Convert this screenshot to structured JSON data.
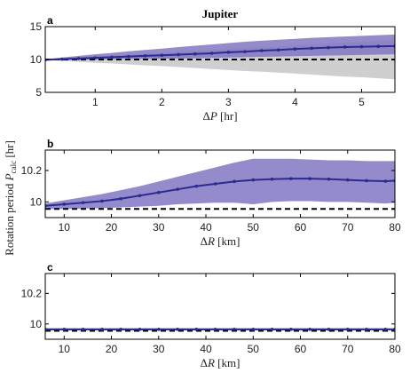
{
  "figure_title": "Jupiter",
  "shared_ylabel": "Rotation period P_calc [hr]",
  "colors": {
    "series": "#2b2b8f",
    "band": "#8177c4",
    "ref_band": "#cfcfcf",
    "reference": "#000000"
  },
  "chart_data": [
    {
      "panel": "a",
      "type": "line",
      "xlabel": "ΔP [hr]",
      "xlim": [
        0.25,
        5.5
      ],
      "ylim": [
        5,
        15
      ],
      "xticks": [
        1,
        2,
        3,
        4,
        5
      ],
      "yticks": [
        5,
        10,
        15
      ],
      "x": [
        0.25,
        0.5,
        0.75,
        1.0,
        1.25,
        1.5,
        1.75,
        2.0,
        2.25,
        2.5,
        2.75,
        3.0,
        3.25,
        3.5,
        3.75,
        4.0,
        4.25,
        4.5,
        4.75,
        5.0,
        5.25,
        5.5
      ],
      "series": [
        {
          "values": [
            9.95,
            10.05,
            10.15,
            10.25,
            10.35,
            10.45,
            10.55,
            10.65,
            10.75,
            10.85,
            10.95,
            11.1,
            11.2,
            11.35,
            11.45,
            11.6,
            11.7,
            11.8,
            11.9,
            11.95,
            12.0,
            12.05
          ]
        }
      ],
      "band_upper": [
        10.05,
        10.3,
        10.55,
        10.8,
        11.0,
        11.25,
        11.45,
        11.65,
        11.9,
        12.1,
        12.3,
        12.5,
        12.7,
        12.85,
        13.0,
        13.15,
        13.3,
        13.4,
        13.5,
        13.6,
        13.7,
        13.8
      ],
      "band_lower": [
        9.95,
        9.98,
        10.0,
        10.02,
        10.05,
        10.08,
        10.1,
        10.12,
        10.15,
        10.2,
        10.25,
        10.3,
        10.35,
        10.4,
        10.45,
        10.5,
        10.55,
        10.6,
        10.65,
        10.7,
        10.75,
        10.8
      ],
      "ref_upper": [
        10.05,
        10.2,
        10.35,
        10.5,
        10.6,
        10.75,
        10.9,
        11.0,
        11.15,
        11.3,
        11.45,
        11.6,
        11.75,
        11.85,
        12.0,
        12.15,
        12.3,
        12.45,
        12.6,
        12.7,
        12.85,
        13.0
      ],
      "ref_lower": [
        9.95,
        9.8,
        9.65,
        9.5,
        9.4,
        9.25,
        9.1,
        9.0,
        8.85,
        8.7,
        8.55,
        8.4,
        8.25,
        8.15,
        8.0,
        7.85,
        7.7,
        7.55,
        7.4,
        7.3,
        7.15,
        7.0
      ],
      "reference": 10.0
    },
    {
      "panel": "b",
      "type": "line",
      "xlabel": "ΔR [km]",
      "xlim": [
        6,
        80
      ],
      "ylim": [
        9.9,
        10.33
      ],
      "xticks": [
        10,
        20,
        30,
        40,
        50,
        60,
        70,
        80
      ],
      "yticks": [
        10.0,
        10.2
      ],
      "ytick_labels": [
        "10",
        "10.2"
      ],
      "x": [
        6,
        10,
        14,
        18,
        22,
        26,
        30,
        34,
        38,
        42,
        46,
        50,
        54,
        58,
        62,
        66,
        70,
        74,
        78,
        80
      ],
      "series": [
        {
          "values": [
            9.975,
            9.985,
            9.995,
            10.005,
            10.02,
            10.04,
            10.06,
            10.08,
            10.1,
            10.115,
            10.13,
            10.14,
            10.145,
            10.148,
            10.148,
            10.145,
            10.14,
            10.135,
            10.132,
            10.135
          ]
        }
      ],
      "band_upper": [
        9.99,
        10.01,
        10.03,
        10.05,
        10.075,
        10.1,
        10.13,
        10.16,
        10.19,
        10.22,
        10.25,
        10.275,
        10.275,
        10.275,
        10.27,
        10.265,
        10.265,
        10.26,
        10.26,
        10.26
      ],
      "band_lower": [
        9.955,
        9.955,
        9.958,
        9.96,
        9.965,
        9.97,
        9.975,
        9.985,
        9.99,
        9.995,
        9.995,
        9.985,
        10.0,
        10.005,
        10.005,
        10.0,
        10.0,
        9.995,
        9.99,
        9.995
      ],
      "reference": 9.955
    },
    {
      "panel": "c",
      "type": "line",
      "xlabel": "ΔR [km]",
      "xlim": [
        6,
        80
      ],
      "ylim": [
        9.9,
        10.33
      ],
      "xticks": [
        10,
        20,
        30,
        40,
        50,
        60,
        70,
        80
      ],
      "yticks": [
        10.0,
        10.2
      ],
      "ytick_labels": [
        "10",
        "10.2"
      ],
      "x": [
        6,
        10,
        14,
        18,
        22,
        26,
        30,
        34,
        38,
        42,
        46,
        50,
        54,
        58,
        62,
        66,
        70,
        74,
        78,
        80
      ],
      "series": [
        {
          "values": [
            9.965,
            9.965,
            9.965,
            9.965,
            9.965,
            9.965,
            9.965,
            9.965,
            9.965,
            9.965,
            9.965,
            9.965,
            9.965,
            9.965,
            9.965,
            9.965,
            9.965,
            9.965,
            9.965,
            9.965
          ]
        }
      ],
      "band_upper": [
        9.972,
        9.972,
        9.972,
        9.972,
        9.972,
        9.972,
        9.972,
        9.972,
        9.972,
        9.972,
        9.972,
        9.972,
        9.972,
        9.972,
        9.972,
        9.972,
        9.972,
        9.972,
        9.972,
        9.972
      ],
      "band_lower": [
        9.958,
        9.958,
        9.958,
        9.958,
        9.958,
        9.958,
        9.958,
        9.958,
        9.958,
        9.958,
        9.958,
        9.958,
        9.958,
        9.958,
        9.958,
        9.958,
        9.958,
        9.958,
        9.958,
        9.958
      ],
      "reference": 9.955
    }
  ]
}
